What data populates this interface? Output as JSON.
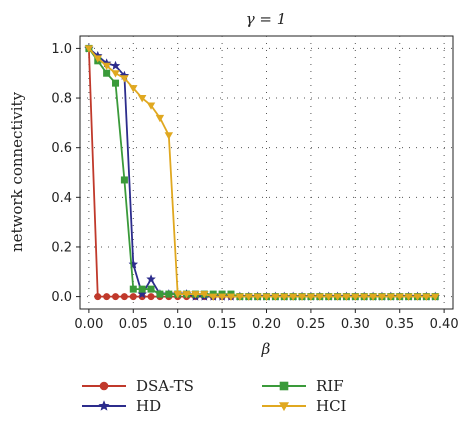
{
  "chart_data": {
    "type": "line",
    "title": "γ = 1",
    "xlabel": "β",
    "ylabel": "network connectivity",
    "xlim": [
      -0.01,
      0.41
    ],
    "ylim": [
      -0.05,
      1.05
    ],
    "xticks": [
      "0.00",
      "0.05",
      "0.10",
      "0.15",
      "0.20",
      "0.25",
      "0.30",
      "0.35",
      "0.40"
    ],
    "yticks": [
      "0.0",
      "0.2",
      "0.4",
      "0.6",
      "0.8",
      "1.0"
    ],
    "xtick_values": [
      0,
      0.05,
      0.1,
      0.15,
      0.2,
      0.25,
      0.3,
      0.35,
      0.4
    ],
    "ytick_values": [
      0,
      0.2,
      0.4,
      0.6,
      0.8,
      1.0
    ],
    "grid": true,
    "legend_position": "bottom",
    "series": [
      {
        "name": "DSA-TS",
        "color": "#c0392b",
        "marker": "circle",
        "x": [
          0.0,
          0.01,
          0.02,
          0.03,
          0.04,
          0.05,
          0.06,
          0.07,
          0.08,
          0.09,
          0.1,
          0.11,
          0.12,
          0.13,
          0.14,
          0.15,
          0.16,
          0.17,
          0.18,
          0.19,
          0.2,
          0.21,
          0.22,
          0.23,
          0.24,
          0.25,
          0.26,
          0.27,
          0.28,
          0.29,
          0.3,
          0.31,
          0.32,
          0.33,
          0.34,
          0.35,
          0.36,
          0.37,
          0.38,
          0.39
        ],
        "y": [
          1.0,
          0,
          0,
          0,
          0,
          0,
          0,
          0,
          0,
          0,
          0,
          0,
          0,
          0,
          0,
          0,
          0,
          0,
          0,
          0,
          0,
          0,
          0,
          0,
          0,
          0,
          0,
          0,
          0,
          0,
          0,
          0,
          0,
          0,
          0,
          0,
          0,
          0,
          0,
          0
        ]
      },
      {
        "name": "HD",
        "color": "#2c2c8c",
        "marker": "star",
        "x": [
          0.0,
          0.01,
          0.02,
          0.03,
          0.04,
          0.05,
          0.06,
          0.07,
          0.08,
          0.09,
          0.1,
          0.11,
          0.12,
          0.13,
          0.14,
          0.15,
          0.16,
          0.17,
          0.18,
          0.19,
          0.2,
          0.21,
          0.22,
          0.23,
          0.24,
          0.25,
          0.26,
          0.27,
          0.28,
          0.29,
          0.3,
          0.31,
          0.32,
          0.33,
          0.34,
          0.35,
          0.36,
          0.37,
          0.38,
          0.39
        ],
        "y": [
          1.0,
          0.97,
          0.94,
          0.93,
          0.89,
          0.13,
          0.01,
          0.07,
          0.01,
          0.01,
          0.01,
          0.01,
          0,
          0,
          0,
          0,
          0,
          0,
          0,
          0,
          0,
          0,
          0,
          0,
          0,
          0,
          0,
          0,
          0,
          0,
          0,
          0,
          0,
          0,
          0,
          0,
          0,
          0,
          0,
          0
        ]
      },
      {
        "name": "RIF",
        "color": "#3a9a3a",
        "marker": "square",
        "x": [
          0.0,
          0.01,
          0.02,
          0.03,
          0.04,
          0.05,
          0.06,
          0.07,
          0.08,
          0.09,
          0.1,
          0.11,
          0.12,
          0.13,
          0.14,
          0.15,
          0.16,
          0.17,
          0.18,
          0.19,
          0.2,
          0.21,
          0.22,
          0.23,
          0.24,
          0.25,
          0.26,
          0.27,
          0.28,
          0.29,
          0.3,
          0.31,
          0.32,
          0.33,
          0.34,
          0.35,
          0.36,
          0.37,
          0.38,
          0.39
        ],
        "y": [
          1.0,
          0.95,
          0.9,
          0.86,
          0.47,
          0.03,
          0.03,
          0.03,
          0.01,
          0.01,
          0.01,
          0.01,
          0.01,
          0.01,
          0.01,
          0.01,
          0.01,
          0,
          0,
          0,
          0,
          0,
          0,
          0,
          0,
          0,
          0,
          0,
          0,
          0,
          0,
          0,
          0,
          0,
          0,
          0,
          0,
          0,
          0,
          0
        ]
      },
      {
        "name": "HCI",
        "color": "#e0a820",
        "marker": "triangle-down",
        "x": [
          0.0,
          0.01,
          0.02,
          0.03,
          0.04,
          0.05,
          0.06,
          0.07,
          0.08,
          0.09,
          0.1,
          0.11,
          0.12,
          0.13,
          0.14,
          0.15,
          0.16,
          0.17,
          0.18,
          0.19,
          0.2,
          0.21,
          0.22,
          0.23,
          0.24,
          0.25,
          0.26,
          0.27,
          0.28,
          0.29,
          0.3,
          0.31,
          0.32,
          0.33,
          0.34,
          0.35,
          0.36,
          0.37,
          0.38,
          0.39
        ],
        "y": [
          1.0,
          0.96,
          0.93,
          0.9,
          0.88,
          0.84,
          0.8,
          0.77,
          0.72,
          0.65,
          0.01,
          0.01,
          0.01,
          0.01,
          0,
          0,
          0,
          0,
          0,
          0,
          0,
          0,
          0,
          0,
          0,
          0,
          0,
          0,
          0,
          0,
          0,
          0,
          0,
          0,
          0,
          0,
          0,
          0,
          0,
          0
        ]
      }
    ]
  }
}
